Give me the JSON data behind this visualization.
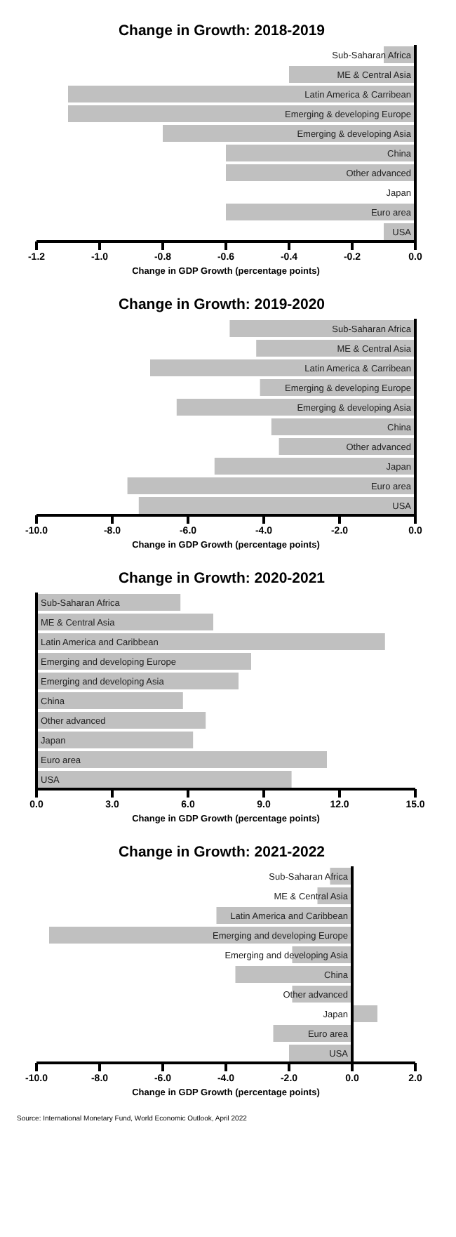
{
  "chart_data": [
    {
      "type": "bar",
      "orientation": "horizontal",
      "title": "Change in Growth: 2018-2019",
      "xlabel": "Change in GDP Growth (percentage points)",
      "categories": [
        "Sub-Saharan Africa",
        "ME & Central Asia",
        "Latin America & Carribean",
        "Emerging & developing Europe",
        "Emerging & developing Asia",
        "China",
        "Other advanced",
        "Japan",
        "Euro area",
        "USA"
      ],
      "values": [
        -0.1,
        -0.4,
        -1.1,
        -1.1,
        -0.8,
        -0.6,
        -0.6,
        0,
        -0.6,
        -0.1
      ],
      "color": "#c0c0c0",
      "xlim": [
        -1.2,
        0
      ],
      "xticks": [
        {
          "value": -1.2,
          "label": "-1.2"
        },
        {
          "value": -1,
          "label": "-1.0"
        },
        {
          "value": -0.8,
          "label": "-0.8"
        },
        {
          "value": -0.6,
          "label": "-0.6"
        },
        {
          "value": -0.4,
          "label": "-0.4"
        },
        {
          "value": -0.2,
          "label": "-0.2"
        },
        {
          "value": 0,
          "label": "0.0"
        }
      ]
    },
    {
      "type": "bar",
      "orientation": "horizontal",
      "title": "Change in Growth: 2019-2020",
      "xlabel": "Change in GDP Growth (percentage points)",
      "categories": [
        "Sub-Saharan Africa",
        "ME & Central Asia",
        "Latin America & Carribean",
        "Emerging & developing Europe",
        "Emerging & developing Asia",
        "China",
        "Other advanced",
        "Japan",
        "Euro area",
        "USA"
      ],
      "values": [
        -4.9,
        -4.2,
        -7.0,
        -4.1,
        -6.3,
        -3.8,
        -3.6,
        -5.3,
        -7.6,
        -7.3
      ],
      "color": "#c0c0c0",
      "xlim": [
        -10,
        0
      ],
      "xticks": [
        {
          "value": -10,
          "label": "-10.0"
        },
        {
          "value": -8,
          "label": "-8.0"
        },
        {
          "value": -6,
          "label": "-6.0"
        },
        {
          "value": -4,
          "label": "-4.0"
        },
        {
          "value": -2,
          "label": "-2.0"
        },
        {
          "value": 0,
          "label": "0.0"
        }
      ]
    },
    {
      "type": "bar",
      "orientation": "horizontal",
      "title": "Change in Growth: 2020-2021",
      "xlabel": "Change in GDP Growth (percentage points)",
      "categories": [
        "Sub-Saharan Africa",
        "ME & Central Asia",
        "Latin America and Caribbean",
        "Emerging and developing Europe",
        "Emerging and developing Asia",
        "China",
        "Other advanced",
        "Japan",
        "Euro area",
        "USA"
      ],
      "values": [
        5.7,
        7.0,
        13.8,
        8.5,
        8.0,
        5.8,
        6.7,
        6.2,
        11.5,
        10.1
      ],
      "color": "#c0c0c0",
      "xlim": [
        0,
        15
      ],
      "xticks": [
        {
          "value": 0,
          "label": "0.0"
        },
        {
          "value": 3,
          "label": "3.0"
        },
        {
          "value": 6,
          "label": "6.0"
        },
        {
          "value": 9,
          "label": "9.0"
        },
        {
          "value": 12,
          "label": "12.0"
        },
        {
          "value": 15,
          "label": "15.0"
        }
      ]
    },
    {
      "type": "bar",
      "orientation": "horizontal",
      "title": "Change in Growth: 2021-2022",
      "xlabel": "Change in GDP Growth (percentage points)",
      "categories": [
        "Sub-Saharan Africa",
        "ME & Central Asia",
        "Latin America and Caribbean",
        "Emerging and developing Europe",
        "Emerging and developing Asia",
        "China",
        "Other advanced",
        "Japan",
        "Euro area",
        "USA"
      ],
      "values": [
        -0.7,
        -1.1,
        -4.3,
        -9.6,
        -1.9,
        -3.7,
        -1.9,
        0.8,
        -2.5,
        -2.0
      ],
      "color": "#c0c0c0",
      "xlim": [
        -10,
        2
      ],
      "xticks": [
        {
          "value": -10,
          "label": "-10.0"
        },
        {
          "value": -8,
          "label": "-8.0"
        },
        {
          "value": -6,
          "label": "-6.0"
        },
        {
          "value": -4,
          "label": "-4.0"
        },
        {
          "value": -2,
          "label": "-2.0"
        },
        {
          "value": 0,
          "label": "0.0"
        },
        {
          "value": 2,
          "label": "2.0"
        }
      ],
      "annotations": [
        "Source: International Monetary Fund, World Economic Outlook, April 2022"
      ]
    }
  ]
}
